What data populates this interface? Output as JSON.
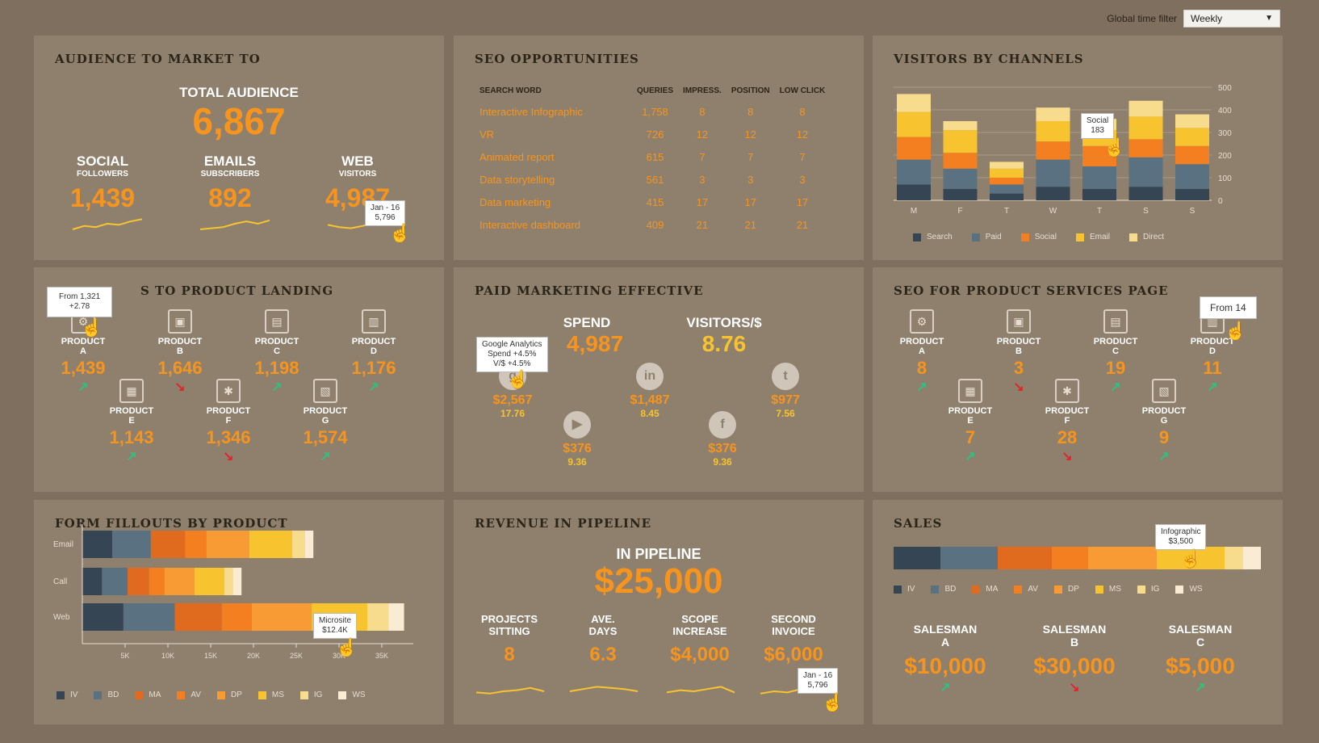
{
  "filter": {
    "label": "Global time filter",
    "value": "Weekly"
  },
  "colors": {
    "IV": "#354554",
    "BD": "#5a7181",
    "MA": "#e06a1e",
    "AV": "#f37f20",
    "DP": "#f89b34",
    "MS": "#f7c430",
    "IG": "#f8dc8e",
    "WS": "#faecd4",
    "Search": "#354554",
    "Paid": "#5a7181",
    "Social": "#f37f20",
    "Email": "#f7c430",
    "Direct": "#f8dc8e"
  },
  "audience": {
    "title": "AUDIENCE TO MARKET TO",
    "total_label": "TOTAL AUDIENCE",
    "total_value": "6,867",
    "stats": [
      {
        "label": "SOCIAL",
        "sub": "FOLLOWERS",
        "value": "1,439"
      },
      {
        "label": "EMAILS",
        "sub": "SUBSCRIBERS",
        "value": "892"
      },
      {
        "label": "WEB",
        "sub": "VISITORS",
        "value": "4,987"
      }
    ],
    "tooltip": {
      "line1": "Jan - 16",
      "line2": "5,796"
    }
  },
  "seo": {
    "title": "SEO OPPORTUNITIES",
    "headers": [
      "SEARCH WORD",
      "QUERIES",
      "IMPRESS.",
      "POSITION",
      "LOW CLICK"
    ],
    "rows": [
      [
        "Interactive Infographic",
        "1,758",
        "8",
        "8",
        "8"
      ],
      [
        "VR",
        "726",
        "12",
        "12",
        "12"
      ],
      [
        "Animated report",
        "615",
        "7",
        "7",
        "7"
      ],
      [
        "Data storytelling",
        "561",
        "3",
        "3",
        "3"
      ],
      [
        "Data marketing",
        "415",
        "17",
        "17",
        "17"
      ],
      [
        "Interactive dashboard",
        "409",
        "21",
        "21",
        "21"
      ]
    ]
  },
  "channels": {
    "title": "VISITORS BY CHANNELS",
    "days": [
      "M",
      "F",
      "T",
      "W",
      "T",
      "S",
      "S"
    ],
    "y_ticks": [
      "500",
      "400",
      "300",
      "200",
      "100",
      "0"
    ],
    "series": [
      "Search",
      "Paid",
      "Social",
      "Email",
      "Direct"
    ],
    "data": [
      [
        70,
        110,
        100,
        110,
        80
      ],
      [
        50,
        90,
        70,
        100,
        40
      ],
      [
        30,
        40,
        30,
        40,
        30
      ],
      [
        60,
        120,
        80,
        90,
        60
      ],
      [
        50,
        100,
        90,
        70,
        50
      ],
      [
        60,
        130,
        80,
        100,
        70
      ],
      [
        50,
        110,
        80,
        80,
        60
      ]
    ],
    "tooltip": {
      "line1": "Social",
      "line2": "183"
    }
  },
  "landing": {
    "title": "S TO PRODUCT LANDING",
    "products": [
      {
        "name": "PRODUCT",
        "letter": "A",
        "value": "1,439",
        "trend": "up"
      },
      {
        "name": "PRODUCT",
        "letter": "B",
        "value": "1,646",
        "trend": "down"
      },
      {
        "name": "PRODUCT",
        "letter": "C",
        "value": "1,198",
        "trend": "up"
      },
      {
        "name": "PRODUCT",
        "letter": "D",
        "value": "1,176",
        "trend": "up"
      },
      {
        "name": "PRODUCT",
        "letter": "E",
        "value": "1,143",
        "trend": "up"
      },
      {
        "name": "PRODUCT",
        "letter": "F",
        "value": "1,346",
        "trend": "down"
      },
      {
        "name": "PRODUCT",
        "letter": "G",
        "value": "1,574",
        "trend": "up"
      }
    ],
    "tooltip": {
      "line1": "From 1,321",
      "line2": "+2.78"
    }
  },
  "paid": {
    "title": "PAID MARKETING EFFECTIVE",
    "spend_label": "SPEND",
    "spend_value": "4,987",
    "vps_label": "VISITORS/$",
    "vps_value": "8.76",
    "channels": [
      {
        "icon": "g",
        "value": "$2,567",
        "ratio": "17.76"
      },
      {
        "icon": "in",
        "value": "$1,487",
        "ratio": "8.45"
      },
      {
        "icon": "t",
        "value": "$977",
        "ratio": "7.56"
      },
      {
        "icon": "▶",
        "value": "$376",
        "ratio": "9.36"
      },
      {
        "icon": "f",
        "value": "$376",
        "ratio": "9.36"
      }
    ],
    "tooltip": {
      "line1": "Google Analytics",
      "line2": "Spend +4.5%",
      "line3": "V/$ +4.5%"
    }
  },
  "seo_product": {
    "title": "SEO FOR PRODUCT SERVICES PAGE",
    "products": [
      {
        "name": "PRODUCT",
        "letter": "A",
        "value": "8",
        "trend": "up"
      },
      {
        "name": "PRODUCT",
        "letter": "B",
        "value": "3",
        "trend": "down"
      },
      {
        "name": "PRODUCT",
        "letter": "C",
        "value": "19",
        "trend": "up"
      },
      {
        "name": "PRODUCT",
        "letter": "D",
        "value": "11",
        "trend": "up"
      },
      {
        "name": "PRODUCT",
        "letter": "E",
        "value": "7",
        "trend": "up"
      },
      {
        "name": "PRODUCT",
        "letter": "F",
        "value": "28",
        "trend": "down"
      },
      {
        "name": "PRODUCT",
        "letter": "G",
        "value": "9",
        "trend": "up"
      }
    ],
    "tooltip": {
      "line1": "From 14"
    }
  },
  "form": {
    "title": "FORM FILLOUTS BY PRODUCT",
    "rows": [
      "Email",
      "Call",
      "Web"
    ],
    "x_ticks": [
      "5K",
      "10K",
      "15K",
      "20K",
      "25K",
      "30K",
      "35K"
    ],
    "series": [
      "IV",
      "BD",
      "MA",
      "AV",
      "DP",
      "MS",
      "IG",
      "WS"
    ],
    "data": [
      [
        3.5,
        4.5,
        4,
        2.5,
        5,
        5,
        1.5,
        1
      ],
      [
        2.3,
        3,
        2.5,
        1.8,
        3.5,
        3.5,
        1,
        1
      ],
      [
        4.8,
        6,
        5.5,
        3.5,
        7,
        6.5,
        2.5,
        1.8
      ]
    ],
    "tooltip": {
      "line1": "Microsite",
      "line2": "$12.4K"
    }
  },
  "pipeline": {
    "title": "REVENUE IN PIPELINE",
    "label": "IN PIPELINE",
    "value": "$25,000",
    "stats": [
      {
        "label1": "PROJECTS",
        "label2": "SITTING",
        "value": "8"
      },
      {
        "label1": "AVE.",
        "label2": "DAYS",
        "value": "6.3"
      },
      {
        "label1": "SCOPE",
        "label2": "INCREASE",
        "value": "$4,000"
      },
      {
        "label1": "SECOND",
        "label2": "INVOICE",
        "value": "$6,000"
      }
    ],
    "tooltip": {
      "line1": "Jan - 16",
      "line2": "5,796"
    }
  },
  "sales": {
    "title": "SALES",
    "series": [
      "IV",
      "BD",
      "MA",
      "AV",
      "DP",
      "MS",
      "IG",
      "WS"
    ],
    "data": [
      13,
      16,
      15,
      10,
      19,
      19,
      5,
      5
    ],
    "tooltip": {
      "line1": "Infographic",
      "line2": "$3,500"
    },
    "people": [
      {
        "label1": "SALESMAN",
        "label2": "A",
        "value": "$10,000",
        "trend": "up"
      },
      {
        "label1": "SALESMAN",
        "label2": "B",
        "value": "$30,000",
        "trend": "down"
      },
      {
        "label1": "SALESMAN",
        "label2": "C",
        "value": "$5,000",
        "trend": "up"
      }
    ]
  }
}
